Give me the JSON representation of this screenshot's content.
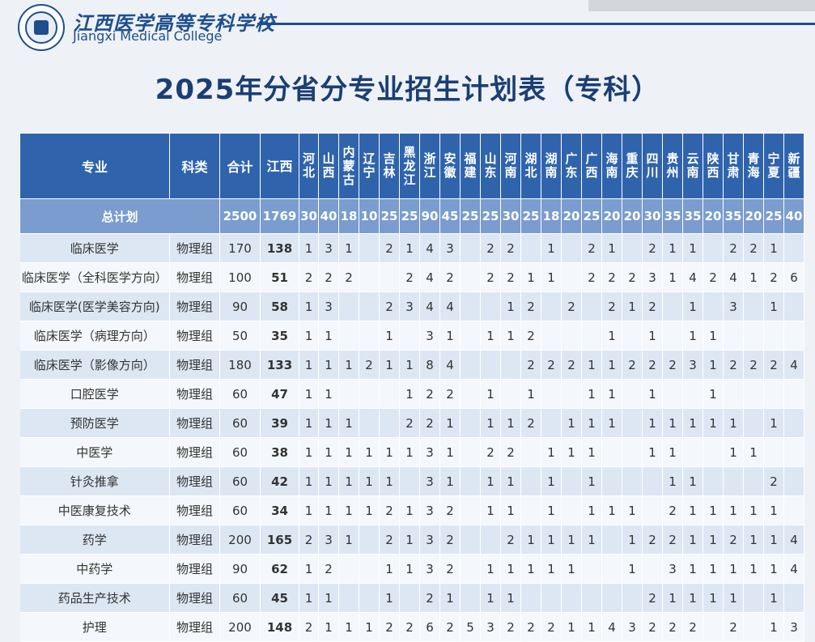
{
  "school": {
    "name_cn": "江西医学高等专科学校",
    "name_en": "Jiangxi Medical College"
  },
  "title": "2025年分省分专业招生计划表（专科）",
  "headers": {
    "major": "专业",
    "category": "科类",
    "total": "合计",
    "provinces": [
      "江西",
      "河北",
      "山西",
      "内蒙古",
      "辽宁",
      "吉林",
      "黑龙江",
      "浙江",
      "安徽",
      "福建",
      "山东",
      "河南",
      "湖北",
      "湖南",
      "广东",
      "广西",
      "海南",
      "重庆",
      "四川",
      "贵州",
      "云南",
      "陕西",
      "甘肃",
      "青海",
      "宁夏",
      "新疆"
    ]
  },
  "total_row": {
    "label": "总计划",
    "total": "2500",
    "values": [
      "1769",
      "30",
      "40",
      "18",
      "10",
      "25",
      "25",
      "90",
      "45",
      "25",
      "25",
      "30",
      "25",
      "18",
      "20",
      "25",
      "20",
      "20",
      "30",
      "35",
      "35",
      "20",
      "35",
      "20",
      "25",
      "40"
    ]
  },
  "rows": [
    {
      "major": "临床医学",
      "category": "物理组",
      "total": "170",
      "values": [
        "138",
        "1",
        "3",
        "1",
        "",
        "2",
        "1",
        "4",
        "3",
        "",
        "2",
        "2",
        "",
        "1",
        "",
        "2",
        "1",
        "",
        "2",
        "1",
        "1",
        "",
        "2",
        "2",
        "1",
        ""
      ]
    },
    {
      "major": "临床医学（全科医学方向）",
      "category": "物理组",
      "total": "100",
      "values": [
        "51",
        "2",
        "2",
        "2",
        "",
        "",
        "2",
        "4",
        "2",
        "",
        "2",
        "2",
        "1",
        "1",
        "",
        "2",
        "2",
        "2",
        "3",
        "1",
        "4",
        "2",
        "4",
        "1",
        "2",
        "6"
      ]
    },
    {
      "major": "临床医学(医学美容方向)",
      "category": "物理组",
      "total": "90",
      "values": [
        "58",
        "1",
        "3",
        "",
        "",
        "2",
        "3",
        "4",
        "4",
        "",
        "",
        "1",
        "2",
        "",
        "2",
        "",
        "2",
        "1",
        "2",
        "",
        "1",
        "",
        "3",
        "",
        "1",
        ""
      ]
    },
    {
      "major": "临床医学（病理方向）",
      "category": "物理组",
      "total": "50",
      "values": [
        "35",
        "1",
        "1",
        "",
        "",
        "1",
        "",
        "3",
        "1",
        "",
        "1",
        "1",
        "2",
        "",
        "",
        "",
        "1",
        "",
        "1",
        "",
        "1",
        "1",
        "",
        "",
        "",
        ""
      ]
    },
    {
      "major": "临床医学（影像方向）",
      "category": "物理组",
      "total": "180",
      "values": [
        "133",
        "1",
        "1",
        "1",
        "2",
        "1",
        "1",
        "8",
        "4",
        "",
        "",
        "",
        "2",
        "2",
        "2",
        "1",
        "1",
        "2",
        "2",
        "2",
        "3",
        "1",
        "2",
        "2",
        "2",
        "4"
      ]
    },
    {
      "major": "口腔医学",
      "category": "物理组",
      "total": "60",
      "values": [
        "47",
        "1",
        "1",
        "",
        "",
        "",
        "1",
        "2",
        "2",
        "",
        "1",
        "",
        "1",
        "",
        "",
        "1",
        "1",
        "",
        "1",
        "",
        "",
        "1",
        "",
        "",
        "",
        ""
      ]
    },
    {
      "major": "预防医学",
      "category": "物理组",
      "total": "60",
      "values": [
        "39",
        "1",
        "1",
        "1",
        "",
        "",
        "2",
        "2",
        "1",
        "",
        "1",
        "1",
        "2",
        "",
        "1",
        "1",
        "1",
        "",
        "1",
        "1",
        "1",
        "1",
        "1",
        "",
        "1",
        ""
      ]
    },
    {
      "major": "中医学",
      "category": "物理组",
      "total": "60",
      "values": [
        "38",
        "1",
        "1",
        "1",
        "1",
        "1",
        "1",
        "3",
        "1",
        "",
        "2",
        "2",
        "",
        "1",
        "1",
        "1",
        "",
        "",
        "1",
        "1",
        "",
        "",
        "1",
        "1",
        "",
        ""
      ]
    },
    {
      "major": "针灸推拿",
      "category": "物理组",
      "total": "60",
      "values": [
        "42",
        "1",
        "1",
        "1",
        "1",
        "1",
        "",
        "3",
        "1",
        "",
        "1",
        "1",
        "",
        "1",
        "",
        "1",
        "",
        "",
        "",
        "1",
        "1",
        "",
        "",
        "",
        "2",
        ""
      ]
    },
    {
      "major": "中医康复技术",
      "category": "物理组",
      "total": "60",
      "values": [
        "34",
        "1",
        "1",
        "1",
        "1",
        "2",
        "1",
        "3",
        "2",
        "",
        "1",
        "1",
        "",
        "1",
        "",
        "1",
        "1",
        "1",
        "",
        "2",
        "1",
        "1",
        "1",
        "1",
        "1",
        ""
      ]
    },
    {
      "major": "药学",
      "category": "物理组",
      "total": "200",
      "values": [
        "165",
        "2",
        "3",
        "1",
        "",
        "2",
        "1",
        "3",
        "2",
        "",
        "",
        "2",
        "1",
        "1",
        "1",
        "1",
        "",
        "1",
        "2",
        "2",
        "1",
        "1",
        "2",
        "1",
        "1",
        "4"
      ]
    },
    {
      "major": "中药学",
      "category": "物理组",
      "total": "90",
      "values": [
        "62",
        "1",
        "2",
        "",
        "",
        "1",
        "1",
        "3",
        "2",
        "",
        "1",
        "1",
        "1",
        "1",
        "1",
        "",
        "",
        "1",
        "",
        "3",
        "1",
        "1",
        "1",
        "1",
        "1",
        "4"
      ]
    },
    {
      "major": "药品生产技术",
      "category": "物理组",
      "total": "60",
      "values": [
        "45",
        "1",
        "1",
        "",
        "",
        "1",
        "",
        "2",
        "1",
        "",
        "1",
        "1",
        "",
        "",
        "",
        "",
        "",
        "",
        "2",
        "1",
        "1",
        "1",
        "1",
        "",
        "1",
        ""
      ]
    },
    {
      "major": "护理",
      "category": "物理组",
      "total": "200",
      "values": [
        "148",
        "2",
        "1",
        "1",
        "1",
        "2",
        "2",
        "6",
        "2",
        "5",
        "3",
        "2",
        "2",
        "2",
        "1",
        "1",
        "4",
        "3",
        "2",
        "2",
        "2",
        "",
        "2",
        "",
        "1",
        "3"
      ]
    }
  ]
}
